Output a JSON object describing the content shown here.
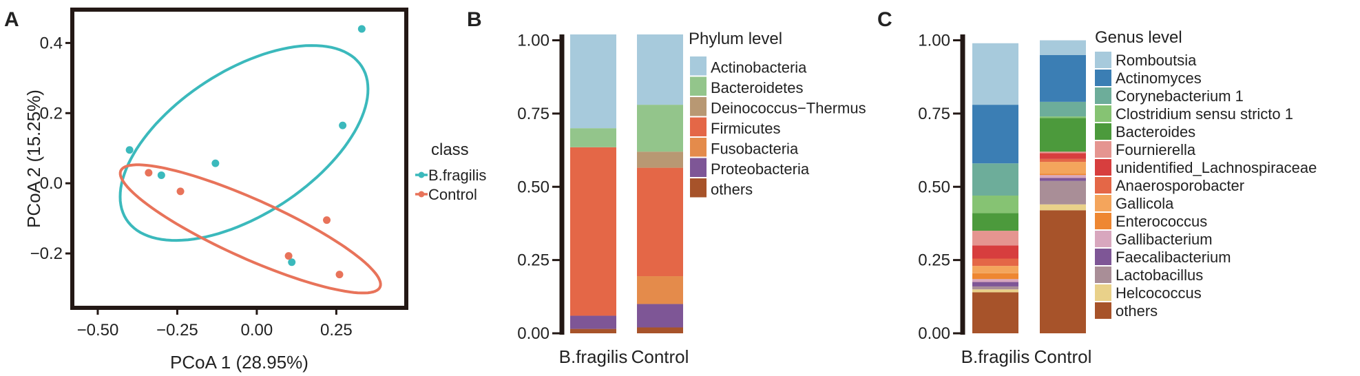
{
  "panels": {
    "a": {
      "letter": "A",
      "chart_data": {
        "type": "scatter",
        "xlabel": "PCoA 1 (28.95%)",
        "ylabel": "PCoA 2 (15.25%)",
        "xlim": [
          -0.58,
          0.47
        ],
        "ylim": [
          -0.355,
          0.495
        ],
        "xticks": [
          -0.5,
          -0.25,
          0.0,
          0.25
        ],
        "xtick_labels": [
          "−0.50",
          "−0.25",
          "0.00",
          "0.25"
        ],
        "yticks": [
          -0.2,
          0.0,
          0.2,
          0.4
        ],
        "ytick_labels": [
          "−0.2",
          "0.0",
          "0.2",
          "0.4"
        ],
        "grid": false,
        "legend_title": "class",
        "legend_position": "right",
        "series": [
          {
            "name": "B.fragilis",
            "color": "#3BB9BC",
            "points": [
              [
                -0.4,
                0.095
              ],
              [
                -0.3,
                0.023
              ],
              [
                -0.13,
                0.057
              ],
              [
                0.27,
                0.165
              ],
              [
                0.33,
                0.44
              ],
              [
                0.11,
                -0.225
              ]
            ],
            "ellipse": {
              "cx": -0.04,
              "cy": 0.115,
              "rx": 0.43,
              "ry": 0.21,
              "angle_deg": 29
            }
          },
          {
            "name": "Control",
            "color": "#E8735A",
            "points": [
              [
                -0.34,
                0.03
              ],
              [
                -0.24,
                -0.023
              ],
              [
                0.1,
                -0.207
              ],
              [
                0.22,
                -0.105
              ],
              [
                0.26,
                -0.26
              ]
            ],
            "ellipse": {
              "cx": -0.02,
              "cy": -0.13,
              "rx": 0.44,
              "ry": 0.085,
              "angle_deg": -22
            }
          }
        ]
      }
    },
    "b": {
      "letter": "B",
      "chart_data": {
        "type": "bar",
        "stacked": true,
        "categories": [
          "B.fragilis",
          "Control"
        ],
        "ylim": [
          0,
          1.02
        ],
        "yticks": [
          0,
          0.25,
          0.5,
          0.75,
          1.0
        ],
        "ytick_labels": [
          "0.00",
          "0.25",
          "0.50",
          "0.75",
          "1.00"
        ],
        "legend_title": "Phylum level",
        "series": [
          {
            "name": "Actinobacteria",
            "color": "#A7CADC",
            "values": [
              0.32,
              0.24
            ]
          },
          {
            "name": "Bacteroidetes",
            "color": "#93C58B",
            "values": [
              0.065,
              0.16
            ]
          },
          {
            "name": "Deinococcus−Thermus",
            "color": "#B89873",
            "values": [
              0.0,
              0.055
            ]
          },
          {
            "name": "Firmicutes",
            "color": "#E46747",
            "values": [
              0.575,
              0.37
            ]
          },
          {
            "name": "Fusobacteria",
            "color": "#E48B4B",
            "values": [
              0.0,
              0.095
            ]
          },
          {
            "name": "Proteobacteria",
            "color": "#7E5696",
            "values": [
              0.045,
              0.08
            ]
          },
          {
            "name": "others",
            "color": "#A7532A",
            "values": [
              0.015,
              0.02
            ]
          }
        ]
      }
    },
    "c": {
      "letter": "C",
      "chart_data": {
        "type": "bar",
        "stacked": true,
        "categories": [
          "B.fragilis",
          "Control"
        ],
        "ylim": [
          0,
          1.02
        ],
        "yticks": [
          0,
          0.25,
          0.5,
          0.75,
          1.0
        ],
        "ytick_labels": [
          "0.00",
          "0.25",
          "0.50",
          "0.75",
          "1.00"
        ],
        "legend_title": "Genus level",
        "series": [
          {
            "name": "Romboutsia",
            "color": "#A7CADC",
            "values": [
              0.21,
              0.05
            ]
          },
          {
            "name": "Actinomyces",
            "color": "#3B7EB4",
            "values": [
              0.2,
              0.16
            ]
          },
          {
            "name": "Corynebacterium 1",
            "color": "#6DAD9A",
            "values": [
              0.11,
              0.05
            ]
          },
          {
            "name": "Clostridium sensu stricto 1",
            "color": "#86C373",
            "values": [
              0.06,
              0.005
            ]
          },
          {
            "name": "Bacteroides",
            "color": "#4C9A3C",
            "values": [
              0.06,
              0.115
            ]
          },
          {
            "name": "Fournierella",
            "color": "#E59590",
            "values": [
              0.05,
              0.005
            ]
          },
          {
            "name": "unidentified_Lachnospiraceae",
            "color": "#D73E3E",
            "values": [
              0.045,
              0.02
            ]
          },
          {
            "name": "Anaerosporobacter",
            "color": "#E46747",
            "values": [
              0.025,
              0.01
            ]
          },
          {
            "name": "Gallicola",
            "color": "#F4A55C",
            "values": [
              0.025,
              0.04
            ]
          },
          {
            "name": "Enterococcus",
            "color": "#EE8732",
            "values": [
              0.02,
              0.005
            ]
          },
          {
            "name": "Gallibacterium",
            "color": "#D8A7BE",
            "values": [
              0.01,
              0.01
            ]
          },
          {
            "name": "Faecalibacterium",
            "color": "#7E5696",
            "values": [
              0.015,
              0.01
            ]
          },
          {
            "name": "Lactobacillus",
            "color": "#A98E97",
            "values": [
              0.01,
              0.08
            ]
          },
          {
            "name": "Helcococcus",
            "color": "#E9D18A",
            "values": [
              0.01,
              0.02
            ]
          },
          {
            "name": "others",
            "color": "#A7532A",
            "values": [
              0.14,
              0.42
            ]
          }
        ]
      }
    }
  }
}
